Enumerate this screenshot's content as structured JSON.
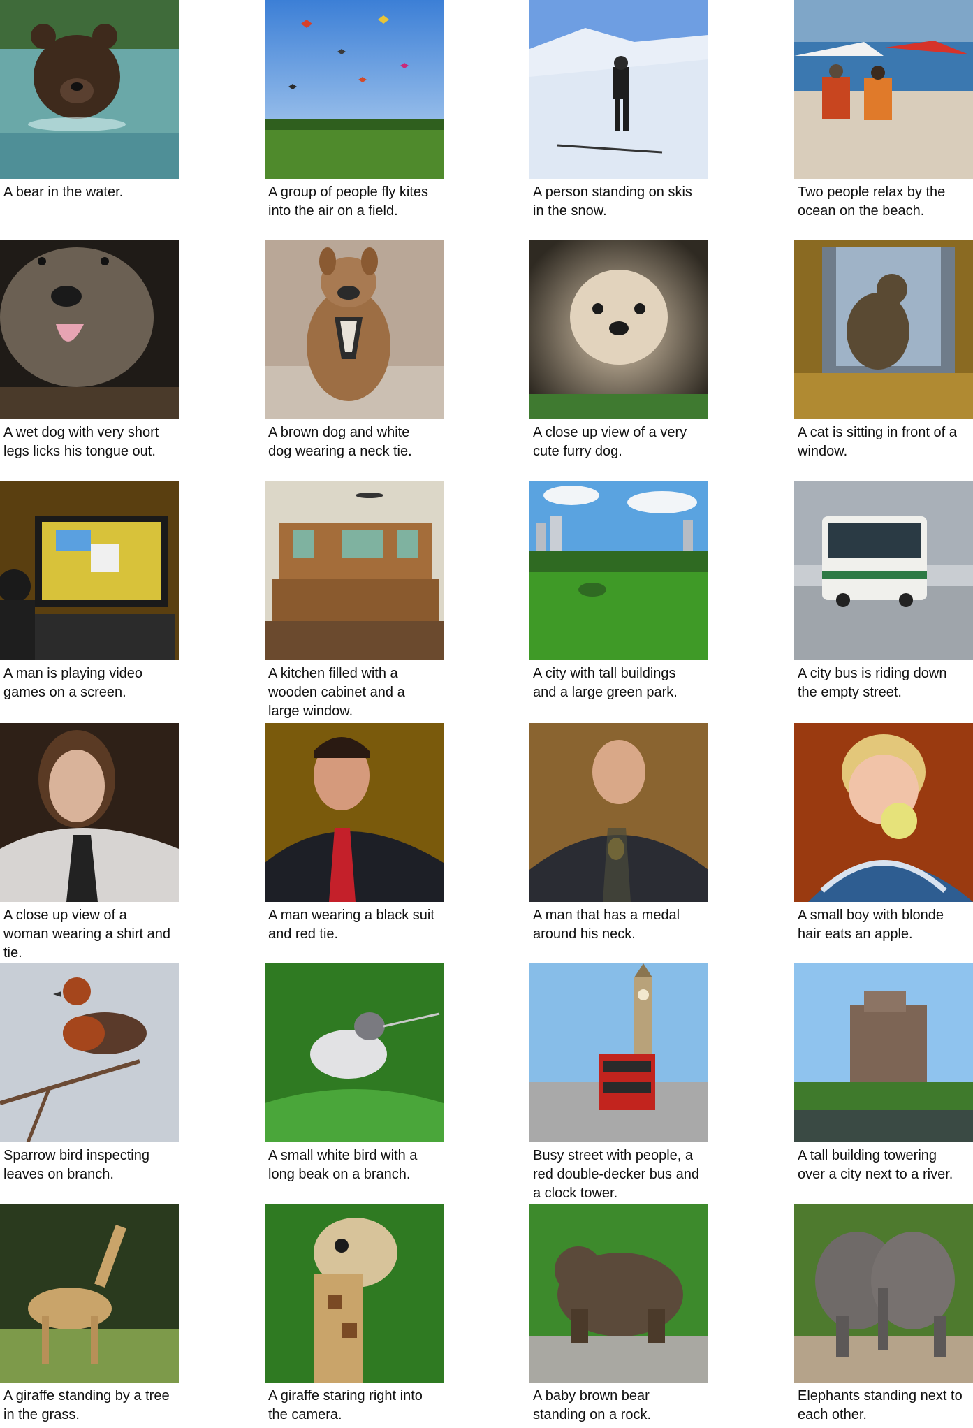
{
  "grid": {
    "items": [
      {
        "caption": "A bear in the water.",
        "image": "bear-in-water-photo",
        "colors": [
          "#5fa2a4",
          "#3e2a1c"
        ]
      },
      {
        "caption": "A group of people fly kites into the air on a field.",
        "image": "kites-field-photo",
        "colors": [
          "#5a8fd8",
          "#4f8a2c"
        ]
      },
      {
        "caption": "A person standing on skis in the snow.",
        "image": "skier-snow-photo",
        "colors": [
          "#7aa6de",
          "#e6eef8"
        ]
      },
      {
        "caption": "Two people relax by the ocean on the beach.",
        "image": "beach-chairs-photo",
        "colors": [
          "#3b78b0",
          "#d9cdbb"
        ]
      },
      {
        "caption": "A wet dog with very short legs licks his tongue out.",
        "image": "wet-dog-photo",
        "colors": [
          "#2a2520",
          "#6b6053"
        ]
      },
      {
        "caption": "A brown dog and white dog wearing a neck tie.",
        "image": "dog-neck-tie-photo",
        "colors": [
          "#b9a797",
          "#9d6e44"
        ]
      },
      {
        "caption": "A close up view of a very cute furry dog.",
        "image": "furry-dog-photo",
        "colors": [
          "#2f2a22",
          "#d9c7ad"
        ]
      },
      {
        "caption": "A cat is sitting in front of a window.",
        "image": "cat-window-photo",
        "colors": [
          "#8a6a22",
          "#5a4a33"
        ]
      },
      {
        "caption": "A man is playing video games on a screen.",
        "image": "video-games-photo",
        "colors": [
          "#5a3f10",
          "#2b2b2b"
        ]
      },
      {
        "caption": "A kitchen filled with a wooden cabinet and a large window.",
        "image": "kitchen-photo",
        "colors": [
          "#8a5a2e",
          "#dcd7c8"
        ]
      },
      {
        "caption": "A city with tall buildings and a large green park.",
        "image": "city-park-photo",
        "colors": [
          "#5aa3e0",
          "#3f9a27"
        ]
      },
      {
        "caption": "A city bus is riding down the empty street.",
        "image": "city-bus-photo",
        "colors": [
          "#c9cdd2",
          "#2d7a45"
        ]
      },
      {
        "caption": "A close up view of a woman wearing a shirt and tie.",
        "image": "woman-shirt-tie-photo",
        "colors": [
          "#2e2017",
          "#d7d4d2"
        ]
      },
      {
        "caption": "A man wearing a black suit and red tie.",
        "image": "man-red-tie-photo",
        "colors": [
          "#7a5a0c",
          "#1d1f26"
        ]
      },
      {
        "caption": "A man that has a medal around his neck.",
        "image": "man-medal-photo",
        "colors": [
          "#8a6430",
          "#2a2c33"
        ]
      },
      {
        "caption": "A small boy with blonde hair eats an apple.",
        "image": "boy-apple-photo",
        "colors": [
          "#9a3a10",
          "#2e5d91"
        ]
      },
      {
        "caption": "Sparrow bird inspecting leaves on branch.",
        "image": "sparrow-bird-photo",
        "colors": [
          "#c8ced6",
          "#a5461c"
        ]
      },
      {
        "caption": "A small white bird with a long beak on a branch.",
        "image": "white-bird-photo",
        "colors": [
          "#2f7a22",
          "#e2e2e4"
        ]
      },
      {
        "caption": "Busy street with people, a red double-decker bus and a clock tower.",
        "image": "clock-tower-bus-photo",
        "colors": [
          "#87bde8",
          "#c2241e"
        ]
      },
      {
        "caption": "A tall building towering over a city next to a river.",
        "image": "tall-building-river-photo",
        "colors": [
          "#8fc3ee",
          "#7d6555"
        ]
      },
      {
        "caption": "A giraffe standing by a tree in the grass.",
        "image": "giraffe-tree-photo",
        "colors": [
          "#2a3a1e",
          "#7d9a4a"
        ]
      },
      {
        "caption": "A giraffe staring right into the camera.",
        "image": "giraffe-camera-photo",
        "colors": [
          "#2f7a22",
          "#c9a46a"
        ]
      },
      {
        "caption": "A baby brown bear standing on a rock.",
        "image": "brown-bear-rock-photo",
        "colors": [
          "#3d8a2c",
          "#5b4a3a"
        ]
      },
      {
        "caption": "Elephants standing next to each other.",
        "image": "elephants-photo",
        "colors": [
          "#4e7a2e",
          "#6f6a68"
        ]
      }
    ]
  }
}
